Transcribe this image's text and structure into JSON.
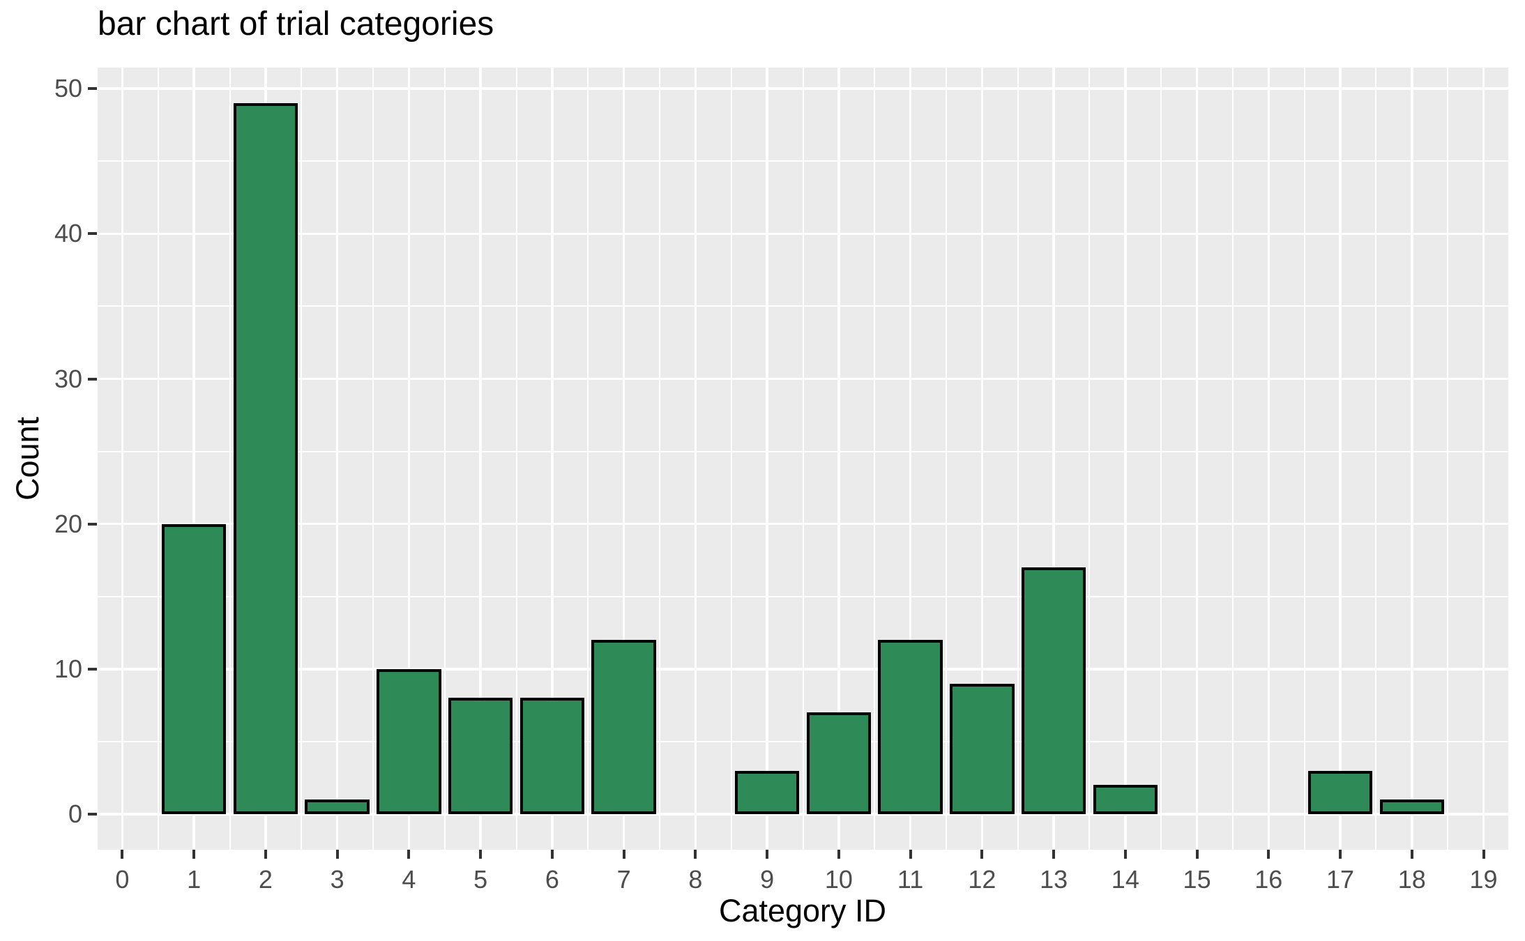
{
  "chart_data": {
    "type": "bar",
    "title": "bar chart of trial categories",
    "xlabel": "Category ID",
    "ylabel": "Count",
    "categories": [
      0,
      1,
      2,
      3,
      4,
      5,
      6,
      7,
      8,
      9,
      10,
      11,
      12,
      13,
      14,
      15,
      16,
      17,
      18,
      19
    ],
    "values": [
      0,
      20,
      49,
      1,
      10,
      8,
      8,
      12,
      0,
      3,
      7,
      12,
      9,
      17,
      2,
      0,
      0,
      3,
      1,
      0
    ],
    "x_ticks": [
      0,
      1,
      2,
      3,
      4,
      5,
      6,
      7,
      8,
      9,
      10,
      11,
      12,
      13,
      14,
      15,
      16,
      17,
      18,
      19
    ],
    "y_ticks": [
      0,
      10,
      20,
      30,
      40,
      50
    ],
    "xlim": [
      -0.345,
      19.345
    ],
    "ylim": [
      -2.45,
      51.45
    ],
    "bar_width": 0.9,
    "grid": "major-and-minor-white",
    "legend": "none",
    "colors": {
      "bar_fill": "#2E8B57",
      "bar_stroke": "#000000",
      "panel_background": "#EBEBEB",
      "gridline": "#FFFFFF",
      "tick_label": "#4D4D4D",
      "tick_mark": "#333333",
      "title_text": "#000000",
      "page_background": "#FFFFFF"
    }
  }
}
